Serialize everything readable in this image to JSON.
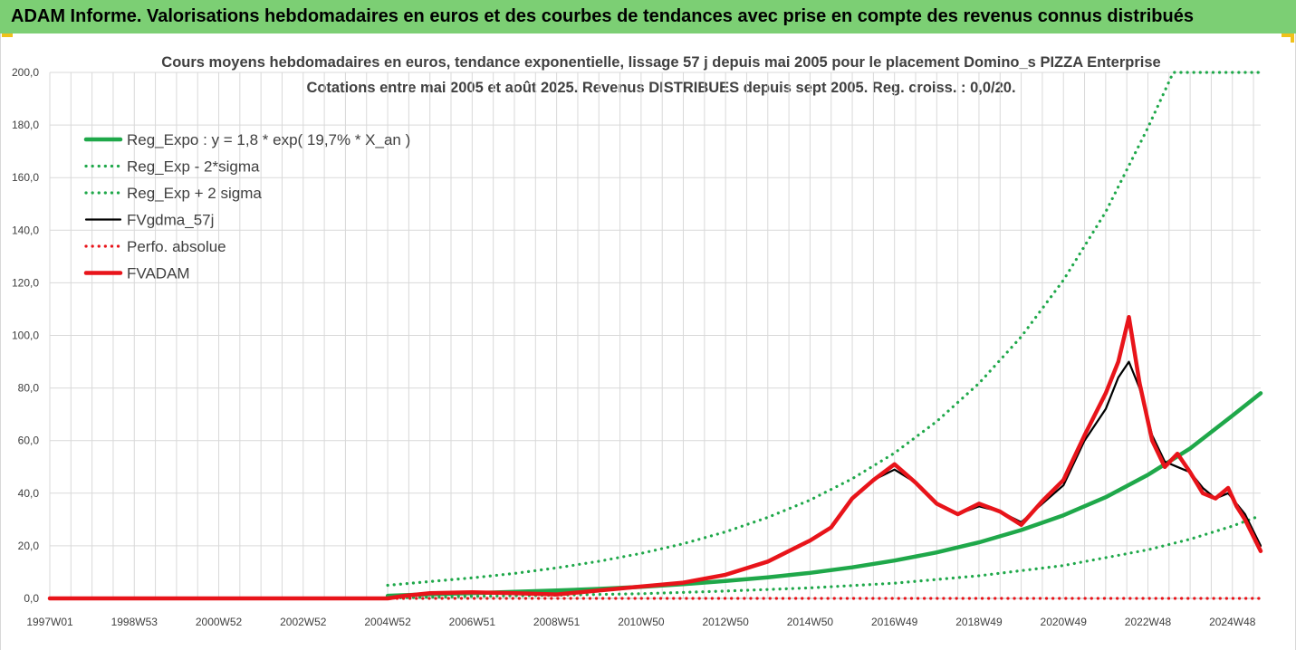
{
  "banner": {
    "title": "ADAM Informe. Valorisations hebdomadaires en euros et des courbes de tendances avec prise en compte des revenus connus distribués"
  },
  "colors": {
    "banner_bg": "#7ccf74",
    "trend_green": "#1fa84a",
    "fvgdma_black": "#000000",
    "fvadam_red": "#e8141a",
    "grid": "#d9d9d9",
    "corner_marks": "#f0c21a"
  },
  "chart_data": {
    "type": "line",
    "title": "Cours moyens hebdomadaires en euros, tendance exponentielle, lissage 57 j depuis mai 2005 pour le placement Domino_s PIZZA Enterprise",
    "subtitle": "Cotations entre mai 2005 et août 2025.  Revenus DISTRIBUES depuis sept 2005.  Reg. croiss. : 0,0/20.",
    "xlabel": "",
    "ylabel": "",
    "ylim": [
      0,
      200
    ],
    "xlim": [
      1997.0,
      2025.67
    ],
    "y_ticks": [
      "0,0",
      "20,0",
      "40,0",
      "60,0",
      "80,0",
      "100,0",
      "120,0",
      "140,0",
      "160,0",
      "180,0",
      "200,0"
    ],
    "x_ticks": [
      {
        "label": "1997W01",
        "x": 1997.0
      },
      {
        "label": "1998W53",
        "x": 1999.0
      },
      {
        "label": "2000W52",
        "x": 2001.0
      },
      {
        "label": "2002W52",
        "x": 2003.0
      },
      {
        "label": "2004W52",
        "x": 2005.0
      },
      {
        "label": "2006W51",
        "x": 2007.0
      },
      {
        "label": "2008W51",
        "x": 2009.0
      },
      {
        "label": "2010W50",
        "x": 2011.0
      },
      {
        "label": "2012W50",
        "x": 2013.0
      },
      {
        "label": "2014W50",
        "x": 2015.0
      },
      {
        "label": "2016W49",
        "x": 2017.0
      },
      {
        "label": "2018W49",
        "x": 2019.0
      },
      {
        "label": "2020W49",
        "x": 2021.0
      },
      {
        "label": "2022W48",
        "x": 2023.0
      },
      {
        "label": "2024W48",
        "x": 2025.0
      }
    ],
    "grid": true,
    "legend_placement": "top-left",
    "series": [
      {
        "name": "Reg_Expo : y = 1,8 * exp( 19,7% *  X_an )",
        "style": "solid-thick",
        "color": "#1fa84a",
        "points": [
          [
            2005.0,
            1.0
          ],
          [
            2006.0,
            1.6
          ],
          [
            2007.0,
            2.0
          ],
          [
            2008.0,
            2.5
          ],
          [
            2009.0,
            3.0
          ],
          [
            2010.0,
            3.6
          ],
          [
            2011.0,
            4.4
          ],
          [
            2012.0,
            5.4
          ],
          [
            2013.0,
            6.6
          ],
          [
            2014.0,
            8.0
          ],
          [
            2015.0,
            9.7
          ],
          [
            2016.0,
            11.8
          ],
          [
            2017.0,
            14.4
          ],
          [
            2018.0,
            17.5
          ],
          [
            2019.0,
            21.3
          ],
          [
            2020.0,
            26.0
          ],
          [
            2021.0,
            31.6
          ],
          [
            2022.0,
            38.5
          ],
          [
            2023.0,
            47.0
          ],
          [
            2024.0,
            57.0
          ],
          [
            2025.0,
            69.5
          ],
          [
            2025.67,
            78.0
          ]
        ]
      },
      {
        "name": "Reg_Exp - 2*sigma",
        "style": "dotted",
        "color": "#1fa84a",
        "points": [
          [
            2005.0,
            0.1
          ],
          [
            2007.0,
            0.8
          ],
          [
            2009.0,
            1.2
          ],
          [
            2011.0,
            1.8
          ],
          [
            2013.0,
            2.8
          ],
          [
            2015.0,
            4.0
          ],
          [
            2017.0,
            5.8
          ],
          [
            2019.0,
            8.6
          ],
          [
            2021.0,
            12.5
          ],
          [
            2023.0,
            18.5
          ],
          [
            2024.0,
            22.5
          ],
          [
            2025.0,
            27.5
          ],
          [
            2025.67,
            31.5
          ]
        ]
      },
      {
        "name": "Reg_Exp + 2 sigma",
        "style": "dotted",
        "color": "#1fa84a",
        "points": [
          [
            2005.0,
            5.0
          ],
          [
            2006.0,
            6.4
          ],
          [
            2007.0,
            7.8
          ],
          [
            2008.0,
            9.5
          ],
          [
            2009.0,
            11.6
          ],
          [
            2010.0,
            14.1
          ],
          [
            2011.0,
            17.1
          ],
          [
            2012.0,
            20.8
          ],
          [
            2013.0,
            25.3
          ],
          [
            2014.0,
            30.8
          ],
          [
            2015.0,
            37.4
          ],
          [
            2016.0,
            45.5
          ],
          [
            2017.0,
            55.3
          ],
          [
            2018.0,
            67.3
          ],
          [
            2019.0,
            81.8
          ],
          [
            2020.0,
            99.5
          ],
          [
            2021.0,
            121.0
          ],
          [
            2022.0,
            147.0
          ],
          [
            2023.0,
            179.0
          ],
          [
            2023.6,
            200.0
          ],
          [
            2025.67,
            200.0
          ]
        ]
      },
      {
        "name": "FVgdma_57j",
        "style": "solid",
        "color": "#000000",
        "points": [
          [
            1997.0,
            0.0
          ],
          [
            2005.0,
            0.0
          ],
          [
            2005.4,
            1.0
          ],
          [
            2006.0,
            2.0
          ],
          [
            2007.0,
            2.3
          ],
          [
            2008.0,
            2.0
          ],
          [
            2009.0,
            1.5
          ],
          [
            2010.0,
            3.0
          ],
          [
            2011.0,
            4.5
          ],
          [
            2012.0,
            6.0
          ],
          [
            2013.0,
            9.0
          ],
          [
            2014.0,
            14.0
          ],
          [
            2015.0,
            22.0
          ],
          [
            2015.5,
            27.0
          ],
          [
            2016.0,
            38.0
          ],
          [
            2016.5,
            45.0
          ],
          [
            2017.0,
            49.0
          ],
          [
            2017.5,
            44.0
          ],
          [
            2018.0,
            36.0
          ],
          [
            2018.5,
            32.0
          ],
          [
            2019.0,
            35.0
          ],
          [
            2019.5,
            33.0
          ],
          [
            2020.0,
            29.0
          ],
          [
            2020.5,
            36.0
          ],
          [
            2021.0,
            43.0
          ],
          [
            2021.5,
            60.0
          ],
          [
            2022.0,
            72.0
          ],
          [
            2022.3,
            84.0
          ],
          [
            2022.55,
            90.0
          ],
          [
            2022.8,
            80.0
          ],
          [
            2023.1,
            62.0
          ],
          [
            2023.4,
            52.0
          ],
          [
            2023.7,
            50.0
          ],
          [
            2024.0,
            48.0
          ],
          [
            2024.3,
            42.0
          ],
          [
            2024.6,
            38.0
          ],
          [
            2024.9,
            40.0
          ],
          [
            2025.1,
            36.0
          ],
          [
            2025.3,
            32.0
          ],
          [
            2025.67,
            20.0
          ]
        ]
      },
      {
        "name": "Perfo. absolue",
        "style": "dotted",
        "color": "#e8141a",
        "points": [
          [
            1997.0,
            0.0
          ],
          [
            2025.67,
            0.0
          ]
        ]
      },
      {
        "name": "FVADAM",
        "style": "solid-thick",
        "color": "#e8141a",
        "points": [
          [
            1997.0,
            0.0
          ],
          [
            2005.0,
            0.0
          ],
          [
            2005.4,
            1.0
          ],
          [
            2006.0,
            2.0
          ],
          [
            2007.0,
            2.3
          ],
          [
            2008.0,
            2.0
          ],
          [
            2009.0,
            1.5
          ],
          [
            2010.0,
            3.0
          ],
          [
            2011.0,
            4.5
          ],
          [
            2012.0,
            6.0
          ],
          [
            2013.0,
            9.0
          ],
          [
            2014.0,
            14.0
          ],
          [
            2015.0,
            22.0
          ],
          [
            2015.5,
            27.0
          ],
          [
            2016.0,
            38.0
          ],
          [
            2016.5,
            45.0
          ],
          [
            2017.0,
            51.0
          ],
          [
            2017.5,
            44.0
          ],
          [
            2018.0,
            36.0
          ],
          [
            2018.5,
            32.0
          ],
          [
            2019.0,
            36.0
          ],
          [
            2019.5,
            33.0
          ],
          [
            2020.0,
            28.0
          ],
          [
            2020.5,
            37.0
          ],
          [
            2021.0,
            45.0
          ],
          [
            2021.5,
            62.0
          ],
          [
            2022.0,
            78.0
          ],
          [
            2022.3,
            90.0
          ],
          [
            2022.55,
            107.0
          ],
          [
            2022.8,
            82.0
          ],
          [
            2023.1,
            60.0
          ],
          [
            2023.4,
            50.0
          ],
          [
            2023.7,
            55.0
          ],
          [
            2024.0,
            48.0
          ],
          [
            2024.3,
            40.0
          ],
          [
            2024.6,
            38.0
          ],
          [
            2024.9,
            42.0
          ],
          [
            2025.1,
            35.0
          ],
          [
            2025.3,
            30.0
          ],
          [
            2025.67,
            18.0
          ]
        ]
      }
    ]
  }
}
